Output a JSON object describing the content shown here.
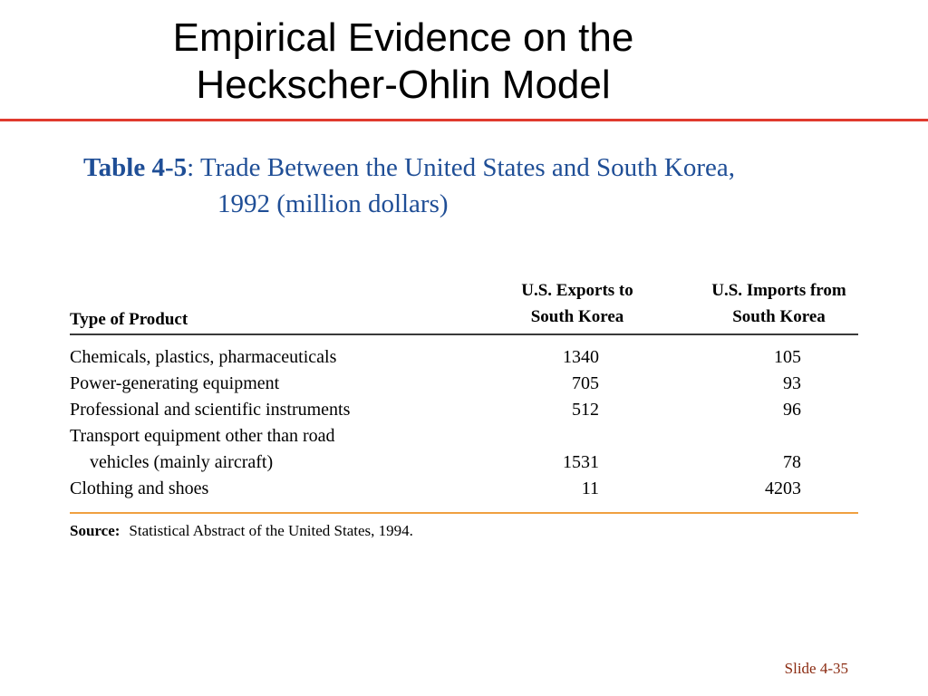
{
  "slide": {
    "title_lines": [
      "Empirical Evidence on the",
      "Heckscher-Ohlin Model"
    ],
    "slide_number": "Slide 4-35",
    "accent_color": "#e03a2e"
  },
  "caption": {
    "label": "Table 4-5",
    "separator": ":",
    "text_line1": " Trade Between the United States and South Korea,",
    "text_line2": "1992 (million dollars)",
    "color": "#1f4e96"
  },
  "table": {
    "headers": {
      "product": "Type of Product",
      "exports": [
        "U.S. Exports to",
        "South Korea"
      ],
      "imports": [
        "U.S. Imports from",
        "South Korea"
      ]
    },
    "rows": [
      {
        "name": "Chemicals, plastics, pharmaceuticals",
        "exports": "1340",
        "imports": "105"
      },
      {
        "name": "Power-generating equipment",
        "exports": "705",
        "imports": "93"
      },
      {
        "name": "Professional and scientific instruments",
        "exports": "512",
        "imports": "96"
      },
      {
        "name": "Transport equipment other than road",
        "exports": "",
        "imports": ""
      },
      {
        "name": "vehicles (mainly aircraft)",
        "exports": "1531",
        "imports": "78"
      },
      {
        "name": "Clothing and shoes",
        "exports": "11",
        "imports": "4203"
      }
    ],
    "source_label": "Source:",
    "source_text": "Statistical Abstract of the United States, 1994."
  }
}
